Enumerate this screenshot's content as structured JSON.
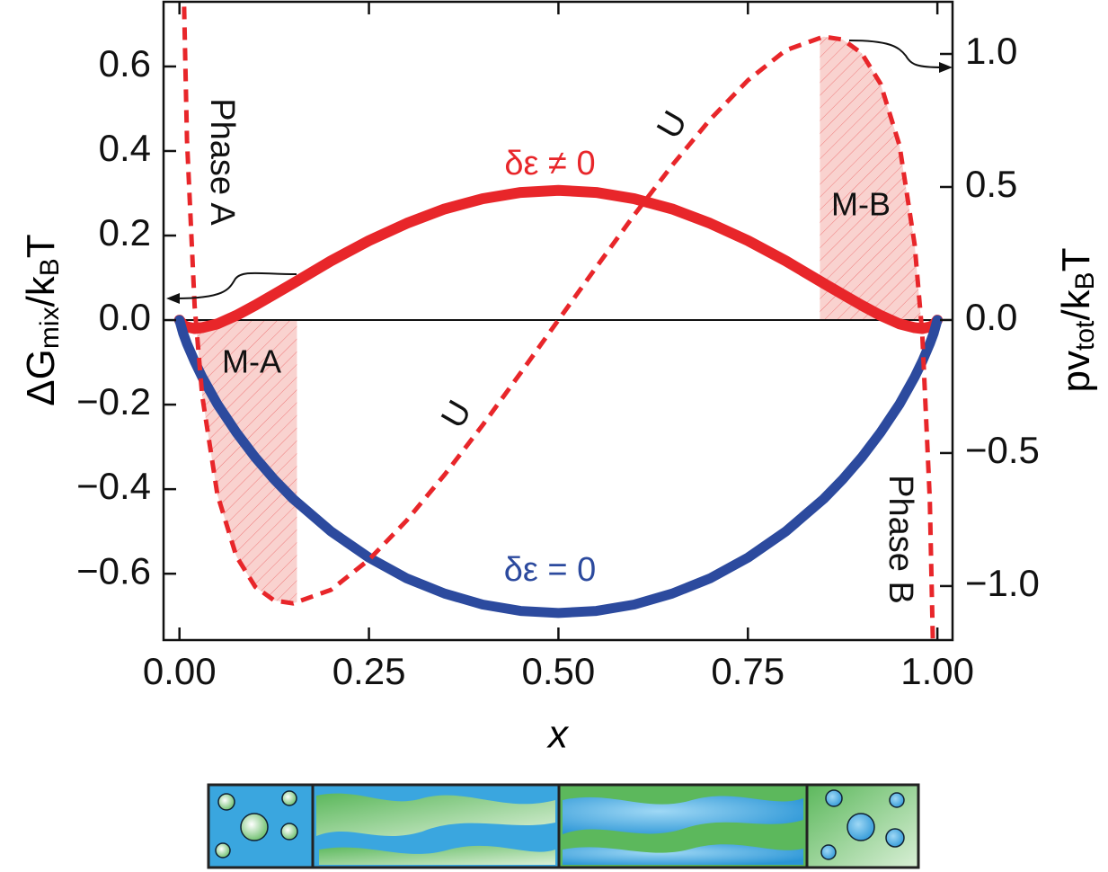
{
  "chart_data": {
    "type": "line",
    "xlabel": "x",
    "ylabel": [
      "ΔG",
      "mix",
      "/k",
      "B",
      "T"
    ],
    "y2label": [
      "pv",
      "tot",
      "/k",
      "B",
      "T"
    ],
    "x": [
      0,
      0.005,
      0.01,
      0.02,
      0.03,
      0.05,
      0.075,
      0.1,
      0.125,
      0.15,
      0.2,
      0.25,
      0.3,
      0.35,
      0.4,
      0.45,
      0.5,
      0.55,
      0.6,
      0.65,
      0.7,
      0.75,
      0.8,
      0.85,
      0.875,
      0.9,
      0.925,
      0.95,
      0.97,
      0.98,
      0.99,
      0.995,
      1
    ],
    "series": [
      {
        "name": "δε ≠ 0",
        "color": "#e8262a",
        "values": [
          0,
          -0.012,
          -0.016,
          -0.02,
          -0.018,
          -0.009,
          0.011,
          0.035,
          0.061,
          0.087,
          0.14,
          0.188,
          0.229,
          0.263,
          0.287,
          0.302,
          0.307,
          0.302,
          0.287,
          0.263,
          0.229,
          0.188,
          0.14,
          0.087,
          0.061,
          0.035,
          0.011,
          -0.009,
          -0.018,
          -0.02,
          -0.016,
          -0.012,
          0
        ]
      },
      {
        "name": "δε = 0",
        "color": "#2c4a9e",
        "values": [
          0,
          -0.032,
          -0.056,
          -0.098,
          -0.135,
          -0.199,
          -0.266,
          -0.325,
          -0.377,
          -0.423,
          -0.5,
          -0.562,
          -0.611,
          -0.647,
          -0.673,
          -0.688,
          -0.693,
          -0.688,
          -0.673,
          -0.647,
          -0.611,
          -0.562,
          -0.5,
          -0.423,
          -0.377,
          -0.325,
          -0.266,
          -0.199,
          -0.135,
          -0.098,
          -0.056,
          -0.032,
          0
        ]
      },
      {
        "color": "#e8262a",
        "axis": "y2",
        "dashed": true,
        "values": [
          null,
          1.333,
          0.675,
          0.052,
          -0.284,
          -0.656,
          -0.888,
          -1.003,
          -1.054,
          -1.065,
          -1.014,
          -0.901,
          -0.753,
          -0.581,
          -0.395,
          -0.199,
          0,
          0.199,
          0.395,
          0.581,
          0.753,
          0.901,
          1.014,
          1.065,
          1.054,
          1.003,
          0.888,
          0.656,
          0.284,
          -0.052,
          -0.675,
          -1.333,
          null
        ]
      }
    ],
    "shaded_regions": [
      {
        "label": "M-A",
        "x": [
          0.022,
          0.155
        ],
        "color": "#f4a6a0"
      },
      {
        "label": "M-B",
        "x": [
          0.845,
          0.978
        ],
        "color": "#f4a6a0"
      }
    ],
    "annotations": [
      "Phase A",
      "Phase B",
      "U",
      "U"
    ],
    "xlim": [
      -0.021,
      1.02
    ],
    "xticks": [
      {
        "value": 0,
        "label": "0.00"
      },
      {
        "value": 0.25,
        "label": "0.25"
      },
      {
        "value": 0.5,
        "label": "0.50"
      },
      {
        "value": 0.75,
        "label": "0.75"
      },
      {
        "value": 1,
        "label": "1.00"
      }
    ],
    "ylim": [
      -0.757,
      0.753
    ],
    "yticks": [
      {
        "value": -0.6,
        "label": "−0.6"
      },
      {
        "value": -0.4,
        "label": "−0.4"
      },
      {
        "value": -0.2,
        "label": "−0.2"
      },
      {
        "value": 0,
        "label": "0.0"
      },
      {
        "value": 0.2,
        "label": "0.2"
      },
      {
        "value": 0.4,
        "label": "0.4"
      },
      {
        "value": 0.6,
        "label": "0.6"
      }
    ],
    "y2lim": [
      -1.203,
      1.196
    ],
    "y2ticks": [
      {
        "value": -1,
        "label": "−1.0"
      },
      {
        "value": -0.5,
        "label": "−0.5"
      },
      {
        "value": 0,
        "label": "0.0"
      },
      {
        "value": 0.5,
        "label": "0.5"
      },
      {
        "value": 1,
        "label": "1.0"
      }
    ],
    "zero_line": true
  }
}
